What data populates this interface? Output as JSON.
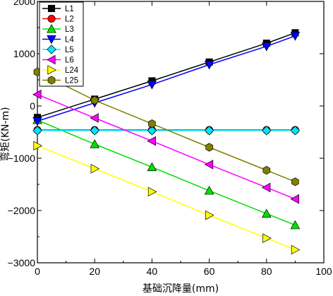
{
  "chart_data": {
    "type": "line",
    "xlabel": "基础沉降量(mm)",
    "ylabel": "弯矩(KN-m)",
    "xlim": [
      0,
      100
    ],
    "ylim": [
      -3000,
      2000
    ],
    "x_ticks": [
      "0",
      "20",
      "40",
      "60",
      "80",
      "100"
    ],
    "y_ticks": [
      "-3000",
      "-2000",
      "-1000",
      "0",
      "1000",
      "2000"
    ],
    "x": [
      0,
      20,
      40,
      60,
      80,
      90
    ],
    "legend_position": "top-left",
    "series": [
      {
        "name": "L1",
        "color": "#000000",
        "marker": "square",
        "values": [
          -220,
          130,
          480,
          840,
          1200,
          1400
        ]
      },
      {
        "name": "L2",
        "color": "#ff0000",
        "marker": "circle",
        "values": [
          -460,
          -460,
          -460,
          -460,
          -460,
          -460
        ]
      },
      {
        "name": "L3",
        "color": "#00e000",
        "marker": "triangle-up",
        "values": [
          -270,
          -730,
          -1170,
          -1620,
          -2060,
          -2280
        ]
      },
      {
        "name": "L4",
        "color": "#0000ff",
        "marker": "triangle-down",
        "values": [
          -290,
          60,
          410,
          790,
          1140,
          1340
        ]
      },
      {
        "name": "L5",
        "color": "#00e5ff",
        "marker": "diamond",
        "values": [
          -470,
          -470,
          -470,
          -470,
          -470,
          -470
        ]
      },
      {
        "name": "L6",
        "color": "#ff00ff",
        "marker": "triangle-left",
        "values": [
          220,
          -230,
          -670,
          -1120,
          -1560,
          -1780
        ]
      },
      {
        "name": "L24",
        "color": "#ffff00",
        "marker": "triangle-right",
        "values": [
          -760,
          -1200,
          -1640,
          -2090,
          -2530,
          -2750
        ]
      },
      {
        "name": "L25",
        "color": "#808000",
        "marker": "hexagon",
        "values": [
          650,
          110,
          -340,
          -790,
          -1230,
          -1450
        ]
      }
    ]
  }
}
